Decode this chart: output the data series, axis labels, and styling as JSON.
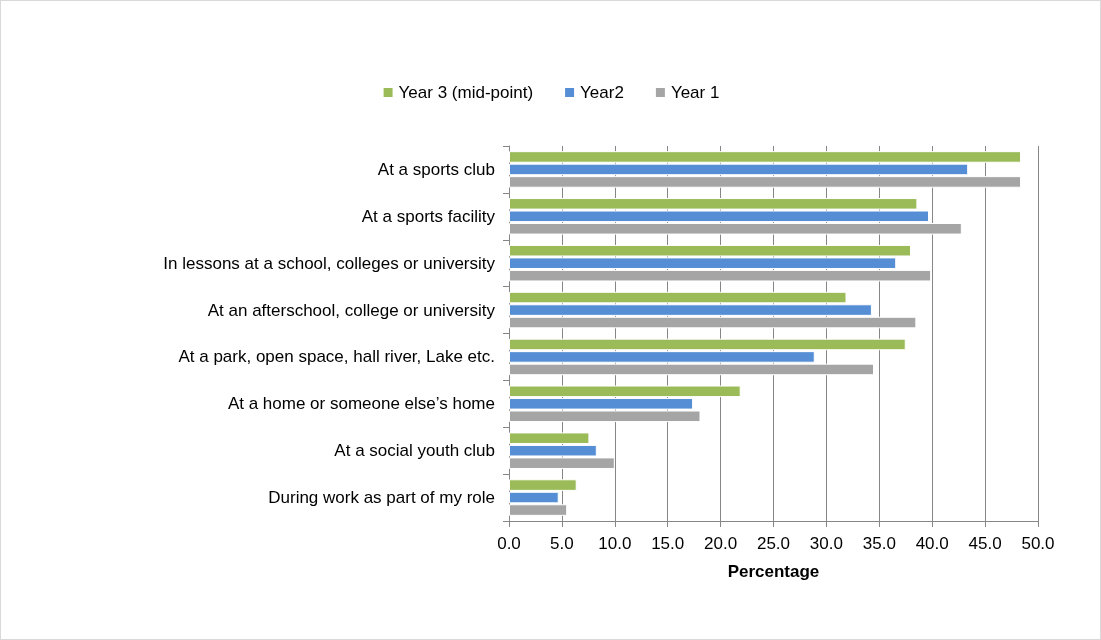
{
  "chart_data": {
    "type": "bar",
    "orientation": "horizontal",
    "xlabel": "Percentage",
    "categories": [
      "At a sports club",
      "At a sports facility",
      "In lessons at a school, colleges or university",
      "At an afterschool, college or university",
      "At a park, open space, hall river, Lake etc.",
      "At a home or someone else’s home",
      "At a social youth club",
      "During work as part of my role"
    ],
    "series": [
      {
        "name": "Year 3 (mid-point)",
        "color": "#9bbb59",
        "values": [
          48.4,
          38.6,
          38.0,
          31.9,
          37.5,
          21.9,
          7.6,
          6.4
        ]
      },
      {
        "name": "Year2",
        "color": "#558ed5",
        "values": [
          43.4,
          39.7,
          36.6,
          34.3,
          28.9,
          17.4,
          8.3,
          4.7
        ]
      },
      {
        "name": "Year 1",
        "color": "#a5a5a5",
        "values": [
          48.4,
          42.8,
          39.9,
          38.5,
          34.5,
          18.1,
          10.0,
          5.5
        ]
      }
    ],
    "xlim": [
      0,
      50
    ],
    "xticks": [
      {
        "value": 0,
        "label": "0.0"
      },
      {
        "value": 5,
        "label": "5.0"
      },
      {
        "value": 10,
        "label": "10.0"
      },
      {
        "value": 15,
        "label": "15.0"
      },
      {
        "value": 20,
        "label": "20.0"
      },
      {
        "value": 25,
        "label": "25.0"
      },
      {
        "value": 30,
        "label": "30.0"
      },
      {
        "value": 35,
        "label": "35.0"
      },
      {
        "value": 40,
        "label": "40.0"
      },
      {
        "value": 45,
        "label": "45.0"
      },
      {
        "value": 50,
        "label": "50.0"
      }
    ],
    "grid": "x",
    "legend": "top"
  }
}
